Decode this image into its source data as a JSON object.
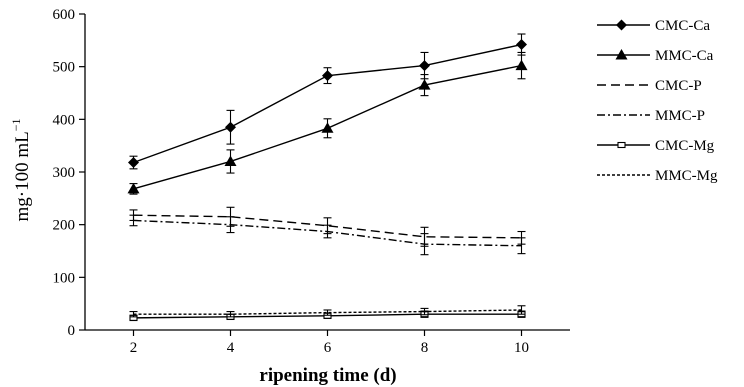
{
  "chart_data": {
    "type": "line",
    "xlabel": "ripening time (d)",
    "ylabel": "mg·100 mL",
    "ylabel_superscript": "−1",
    "x": [
      2,
      4,
      6,
      8,
      10
    ],
    "xticks": [
      "2",
      "4",
      "6",
      "8",
      "10"
    ],
    "yticks": [
      "0",
      "100",
      "200",
      "300",
      "400",
      "500",
      "600"
    ],
    "xlim": [
      1,
      11
    ],
    "ylim": [
      0,
      600
    ],
    "grid": false,
    "legend_position": "right",
    "series": [
      {
        "name": "CMC-Ca",
        "values": [
          318,
          385,
          483,
          502,
          542
        ],
        "errors": [
          12,
          32,
          15,
          25,
          20
        ],
        "marker": "diamond",
        "line": "solid"
      },
      {
        "name": "MMC-Ca",
        "values": [
          268,
          320,
          383,
          465,
          502
        ],
        "errors": [
          10,
          22,
          18,
          20,
          25
        ],
        "marker": "triangle",
        "line": "solid"
      },
      {
        "name": "CMC-P",
        "values": [
          218,
          215,
          198,
          177,
          175
        ],
        "errors": [
          10,
          18,
          15,
          18,
          12
        ],
        "marker": "none",
        "line": "dashed"
      },
      {
        "name": "MMC-P",
        "values": [
          208,
          200,
          187,
          163,
          160
        ],
        "errors": [
          10,
          15,
          12,
          20,
          15
        ],
        "marker": "none",
        "line": "dashdot"
      },
      {
        "name": "CMC-Mg",
        "values": [
          23,
          25,
          27,
          30,
          30
        ],
        "errors": [
          5,
          5,
          5,
          6,
          6
        ],
        "marker": "square",
        "line": "solid"
      },
      {
        "name": "MMC-Mg",
        "values": [
          30,
          30,
          33,
          35,
          38
        ],
        "errors": [
          5,
          5,
          5,
          6,
          8
        ],
        "marker": "none",
        "line": "dotted"
      }
    ]
  }
}
